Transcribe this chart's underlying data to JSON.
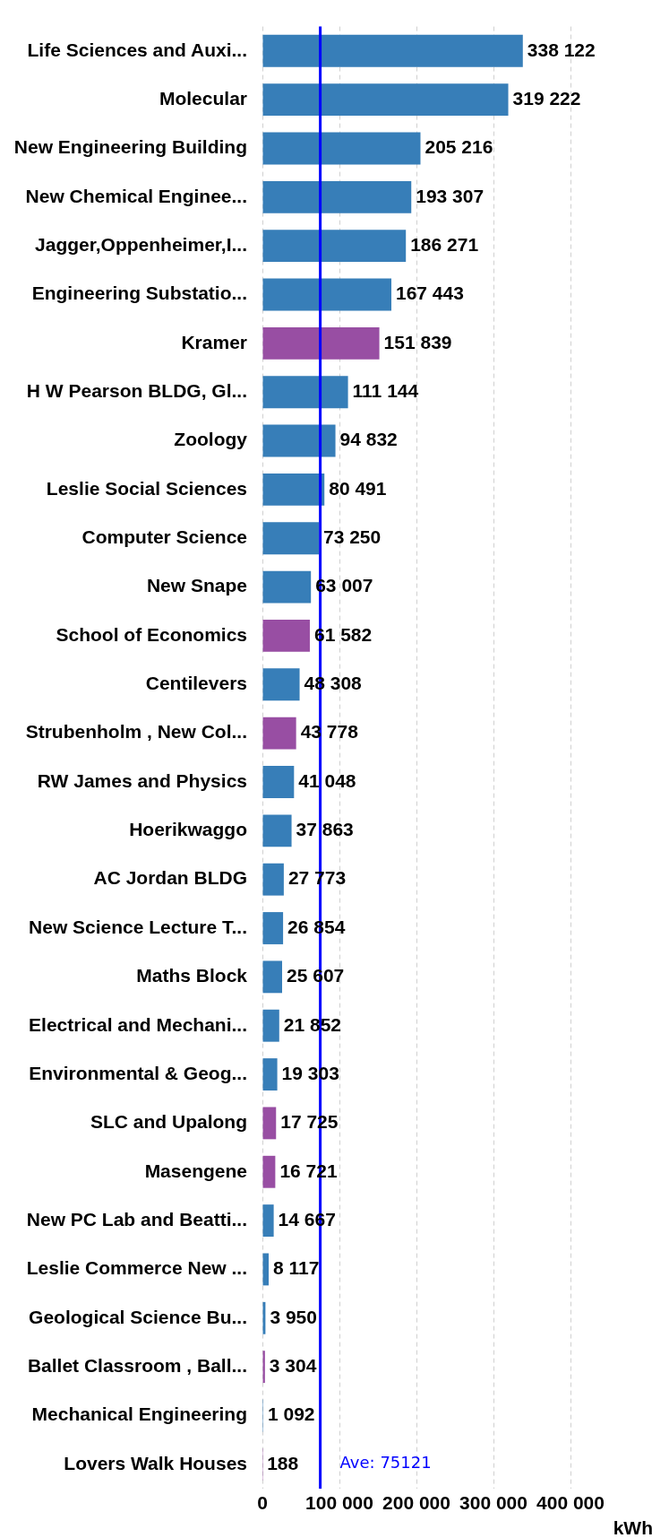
{
  "chart_data": {
    "type": "bar",
    "orientation": "horizontal",
    "categories": [
      "Life Sciences and Auxi...",
      "Molecular",
      "New Engineering Building",
      "New Chemical Enginee...",
      "Jagger,Oppenheimer,I...",
      "Engineering Substatio...",
      "Kramer",
      "H W Pearson BLDG, Gl...",
      "Zoology",
      "Leslie Social Sciences",
      "Computer Science",
      "New Snape",
      "School of Economics",
      "Centilevers",
      "Strubenholm , New Col...",
      "RW James and Physics",
      "Hoerikwaggo",
      "AC Jordan BLDG",
      "New Science Lecture T...",
      "Maths Block",
      "Electrical and Mechani...",
      "Environmental & Geog...",
      "SLC and Upalong",
      "Masengene",
      "New PC Lab and Beatti...",
      "Leslie Commerce New ...",
      "Geological Science Bu...",
      "Ballet Classroom , Ball...",
      "Mechanical Engineering",
      "Lovers Walk Houses"
    ],
    "values": [
      338122,
      319222,
      205216,
      193307,
      186271,
      167443,
      151839,
      111144,
      94832,
      80491,
      73250,
      63007,
      61582,
      48308,
      43778,
      41048,
      37863,
      27773,
      26854,
      25607,
      21852,
      19303,
      17725,
      16721,
      14667,
      8117,
      3950,
      3304,
      1092,
      188
    ],
    "value_labels": [
      "338 122",
      "319 222",
      "205 216",
      "193 307",
      "186 271",
      "167 443",
      "151 839",
      "111 144",
      "94 832",
      "80 491",
      "73 250",
      "63 007",
      "61 582",
      "48 308",
      "43 778",
      "41 048",
      "37 863",
      "27 773",
      "26 854",
      "25 607",
      "21 852",
      "19 303",
      "17 725",
      "16 721",
      "14 667",
      "8 117",
      "3 950",
      "3 304",
      "1 092",
      "188"
    ],
    "colors": [
      "#377eb8",
      "#377eb8",
      "#377eb8",
      "#377eb8",
      "#377eb8",
      "#377eb8",
      "#984ea3",
      "#377eb8",
      "#377eb8",
      "#377eb8",
      "#377eb8",
      "#377eb8",
      "#984ea3",
      "#377eb8",
      "#984ea3",
      "#377eb8",
      "#377eb8",
      "#377eb8",
      "#377eb8",
      "#377eb8",
      "#377eb8",
      "#377eb8",
      "#984ea3",
      "#984ea3",
      "#377eb8",
      "#377eb8",
      "#377eb8",
      "#984ea3",
      "#377eb8",
      "#984ea3"
    ],
    "xlabel": "kWh",
    "xlim": [
      0,
      400000
    ],
    "xticks": [
      0,
      {
        "value": 100000,
        "label": "100 000"
      },
      {
        "value": 200000,
        "label": "200 000"
      },
      {
        "value": 300000,
        "label": "300 000"
      },
      {
        "value": 400000,
        "label": "400 000"
      }
    ],
    "grid": "x",
    "ref_lines": [
      {
        "axis": "x",
        "value": 75121,
        "label": "Ave: 75121",
        "color": "#0000ff"
      }
    ]
  }
}
